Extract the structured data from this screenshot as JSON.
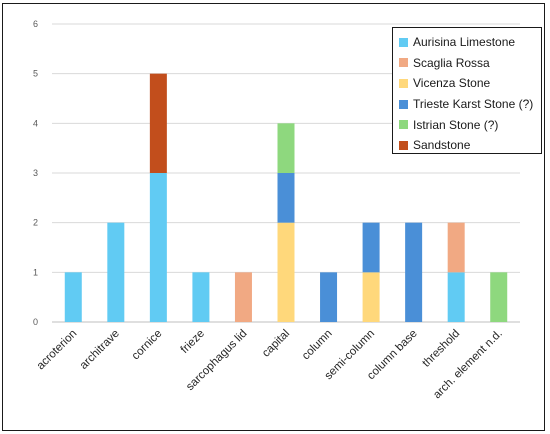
{
  "chart_data": {
    "type": "bar",
    "stacked": true,
    "categories": [
      "acroterion",
      "architrave",
      "cornice",
      "frieze",
      "sarcophagus lid",
      "capital",
      "column",
      "semi-column",
      "column base",
      "threshold",
      "arch. element n.d."
    ],
    "series": [
      {
        "name": "Aurisina Limestone",
        "color": "#61cbf3",
        "values": [
          1,
          2,
          3,
          1,
          0,
          0,
          0,
          0,
          0,
          1,
          0
        ]
      },
      {
        "name": "Scaglia Rossa",
        "color": "#f1a983",
        "values": [
          0,
          0,
          0,
          0,
          1,
          0,
          0,
          0,
          0,
          1,
          0
        ]
      },
      {
        "name": "Vicenza Stone",
        "color": "#ffd87b",
        "values": [
          0,
          0,
          0,
          0,
          0,
          2,
          0,
          1,
          0,
          0,
          0
        ]
      },
      {
        "name": "Trieste Karst Stone (?)",
        "color": "#4a8fd7",
        "values": [
          0,
          0,
          0,
          0,
          0,
          1,
          1,
          1,
          2,
          0,
          0
        ]
      },
      {
        "name": "Istrian Stone (?)",
        "color": "#8ed87e",
        "values": [
          0,
          0,
          0,
          0,
          0,
          1,
          0,
          0,
          0,
          0,
          1
        ]
      },
      {
        "name": "Sandstone",
        "color": "#c24e1c",
        "values": [
          0,
          0,
          2,
          0,
          0,
          0,
          0,
          0,
          0,
          0,
          0
        ]
      }
    ],
    "title": "",
    "xlabel": "",
    "ylabel": "",
    "ylim": [
      0,
      6
    ],
    "yticks": [
      "0",
      "1",
      "2",
      "3",
      "4",
      "5",
      "6"
    ],
    "grid": true,
    "legend": "top-right"
  }
}
